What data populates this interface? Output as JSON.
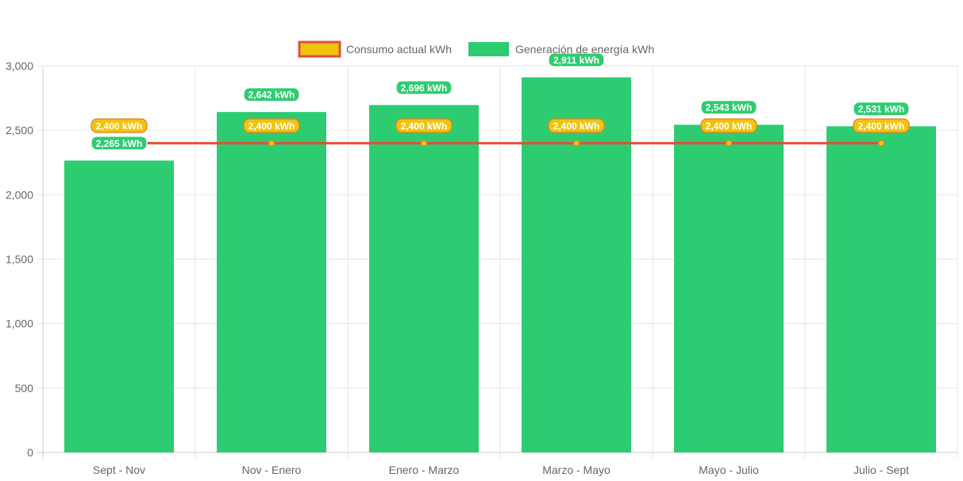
{
  "chart_data": {
    "type": "bar",
    "title": "",
    "xlabel": "",
    "ylabel": "",
    "ylim": [
      0,
      3000
    ],
    "y_ticks": [
      "0",
      "500",
      "1,000",
      "1,500",
      "2,000",
      "2,500",
      "3,000"
    ],
    "categories": [
      "Sept - Nov",
      "Nov - Enero",
      "Enero - Marzo",
      "Marzo - Mayo",
      "Mayo - Julio",
      "Julio - Sept"
    ],
    "grid": true,
    "legend_position": "top",
    "series": [
      {
        "name": "Consumo actual kWh",
        "type": "line",
        "color": "#e74c3c",
        "label_fill": "#f1c40f",
        "label_border": "#e67e22",
        "values": [
          2400,
          2400,
          2400,
          2400,
          2400,
          2400
        ],
        "labels": [
          "2,400 kWh",
          "2,400 kWh",
          "2,400 kWh",
          "2,400 kWh",
          "2,400 kWh",
          "2,400 kWh"
        ]
      },
      {
        "name": "Generación de energía kWh",
        "type": "bar",
        "color": "#2ecc71",
        "values": [
          2265,
          2642,
          2696,
          2911,
          2543,
          2531
        ],
        "labels": [
          "2,265 kWh",
          "2,642 kWh",
          "2,696 kWh",
          "2,911 kWh",
          "2,543 kWh",
          "2,531 kWh"
        ]
      }
    ]
  }
}
